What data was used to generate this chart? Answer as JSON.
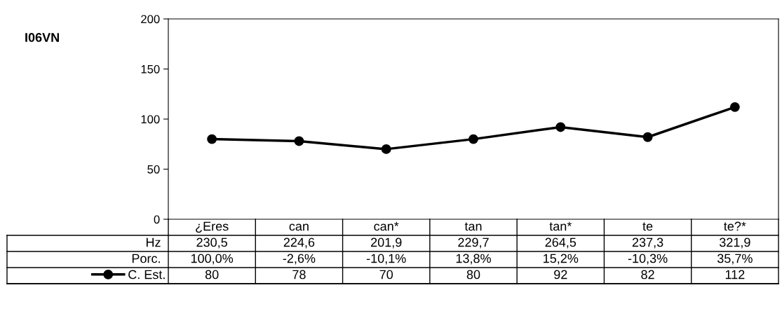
{
  "chart_data": {
    "type": "line",
    "title": "I06VN",
    "categories": [
      "¿Eres",
      "can",
      "can*",
      "tan",
      "tan*",
      "te",
      "te?*"
    ],
    "series": [
      {
        "name": "C. Est.",
        "color": "#000000",
        "values": [
          80,
          78,
          70,
          80,
          92,
          82,
          112
        ]
      }
    ],
    "ylim": [
      0,
      200
    ],
    "yticks": [
      0,
      50,
      100,
      150,
      200
    ],
    "grid": false,
    "marker": "circle",
    "line_style": "solid",
    "legend": "bottom left",
    "data_labels": true,
    "annotations": [
      "Hz",
      "230,5",
      "224,6",
      "201,9",
      "229,7",
      "264,5",
      "237,3",
      "321,9",
      "Porc.",
      "100,0%",
      "-2,6%",
      "-10,1%",
      "13,8%",
      "15,2%",
      "-10,3%",
      "35,7%"
    ]
  }
}
